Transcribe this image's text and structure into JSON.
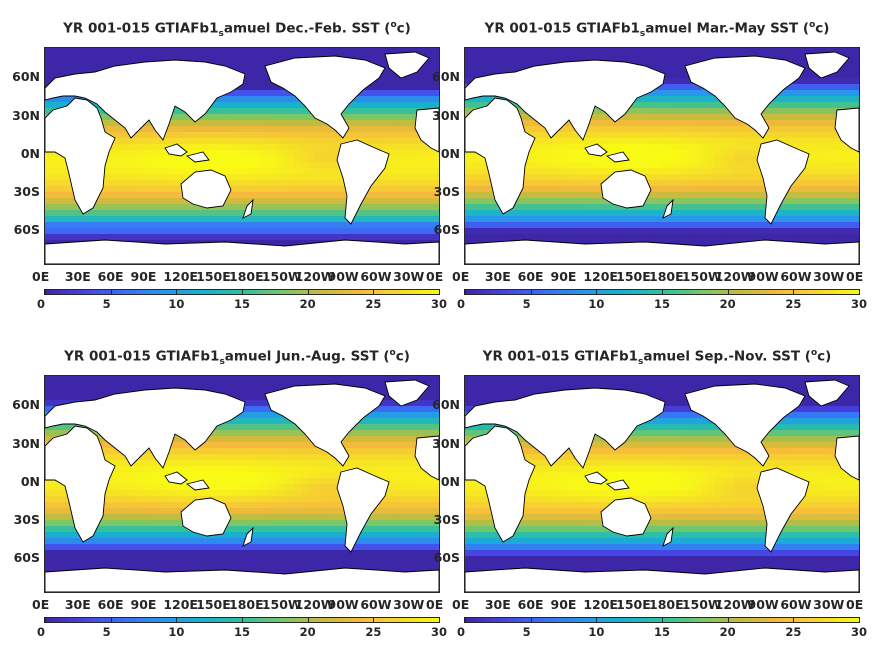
{
  "figure": {
    "panels": [
      {
        "id": "djf",
        "title": "YR 001-015 GTIAFb1",
        "title_sub": "s",
        "title_rest": "amuel Dec.-Feb. SST (",
        "title_sup": "o",
        "title_end": "c)",
        "season": "DJF"
      },
      {
        "id": "mam",
        "title": "YR 001-015 GTIAFb1",
        "title_sub": "s",
        "title_rest": "amuel Mar.-May SST (",
        "title_sup": "o",
        "title_end": "c)",
        "season": "MAM"
      },
      {
        "id": "jja",
        "title": "YR 001-015 GTIAFb1",
        "title_sub": "s",
        "title_rest": "amuel Jun.-Aug. SST (",
        "title_sup": "o",
        "title_end": "c)",
        "season": "JJA"
      },
      {
        "id": "son",
        "title": "YR 001-015 GTIAFb1",
        "title_sub": "s",
        "title_rest": "amuel Sep.-Nov. SST (",
        "title_sup": "o",
        "title_end": "c)",
        "season": "SON"
      }
    ],
    "lat_ticks": [
      "60N",
      "30N",
      "0N",
      "30S",
      "60S"
    ],
    "lat_values": [
      60,
      30,
      0,
      -30,
      -60
    ],
    "lon_ticks": [
      "0E",
      "30E",
      "60E",
      "90E",
      "120E",
      "150E",
      "180E",
      "150W",
      "120W",
      "90W",
      "60W",
      "30W",
      "0E"
    ],
    "colorbar": {
      "ticks": [
        "0",
        "5",
        "10",
        "15",
        "20",
        "25",
        "30"
      ],
      "min": 0,
      "max": 30
    },
    "colormap": [
      "#3e26a8",
      "#4743e4",
      "#3b6ef7",
      "#2797eb",
      "#18b1cf",
      "#2fc09f",
      "#77c76a",
      "#c4bc3c",
      "#f7ba3c",
      "#f5d92b",
      "#f9fb14"
    ],
    "land_color": "#ffffff",
    "coast_color": "#000000"
  }
}
